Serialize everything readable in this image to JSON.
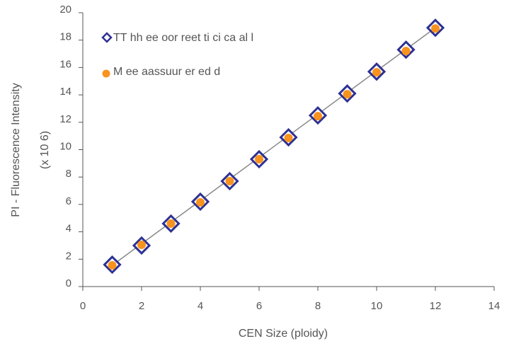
{
  "chart_data": {
    "type": "scatter",
    "xlabel": "CEN Size (ploidy)",
    "ylabel": "PI - Fluorescence Intensity",
    "ylabel_line2": "(x 10 6)",
    "xlim": [
      0,
      14
    ],
    "ylim": [
      0,
      20
    ],
    "x_ticks": [
      "0",
      "2",
      "4",
      "6",
      "8",
      "10",
      "12",
      "14"
    ],
    "y_ticks": [
      "0",
      "2",
      "4",
      "6",
      "8",
      "10",
      "12",
      "14",
      "16",
      "18",
      "20"
    ],
    "grid": false,
    "legend_position": "top-left",
    "series": [
      {
        "name": "TT hh ee oor reet ti ci ca al l",
        "marker": "diamond-open",
        "color": "#2e3192",
        "x": [
          1,
          2,
          3,
          4,
          5,
          6,
          7,
          8,
          9,
          10,
          11,
          12
        ],
        "y": [
          1.6,
          3.0,
          4.6,
          6.2,
          7.7,
          9.3,
          10.9,
          12.5,
          14.1,
          15.7,
          17.3,
          18.9
        ]
      },
      {
        "name": "M ee aassuur er ed d",
        "marker": "circle",
        "color": "#f7931e",
        "x": [
          1,
          2,
          3,
          4,
          5,
          6,
          7,
          8,
          9,
          10,
          11,
          12
        ],
        "y": [
          1.55,
          3.05,
          4.6,
          6.15,
          7.7,
          9.3,
          10.85,
          12.45,
          14.05,
          15.65,
          17.2,
          18.85
        ]
      }
    ],
    "trendline": {
      "color": "#888888",
      "x": [
        1,
        12
      ],
      "y": [
        1.55,
        18.9
      ]
    }
  }
}
